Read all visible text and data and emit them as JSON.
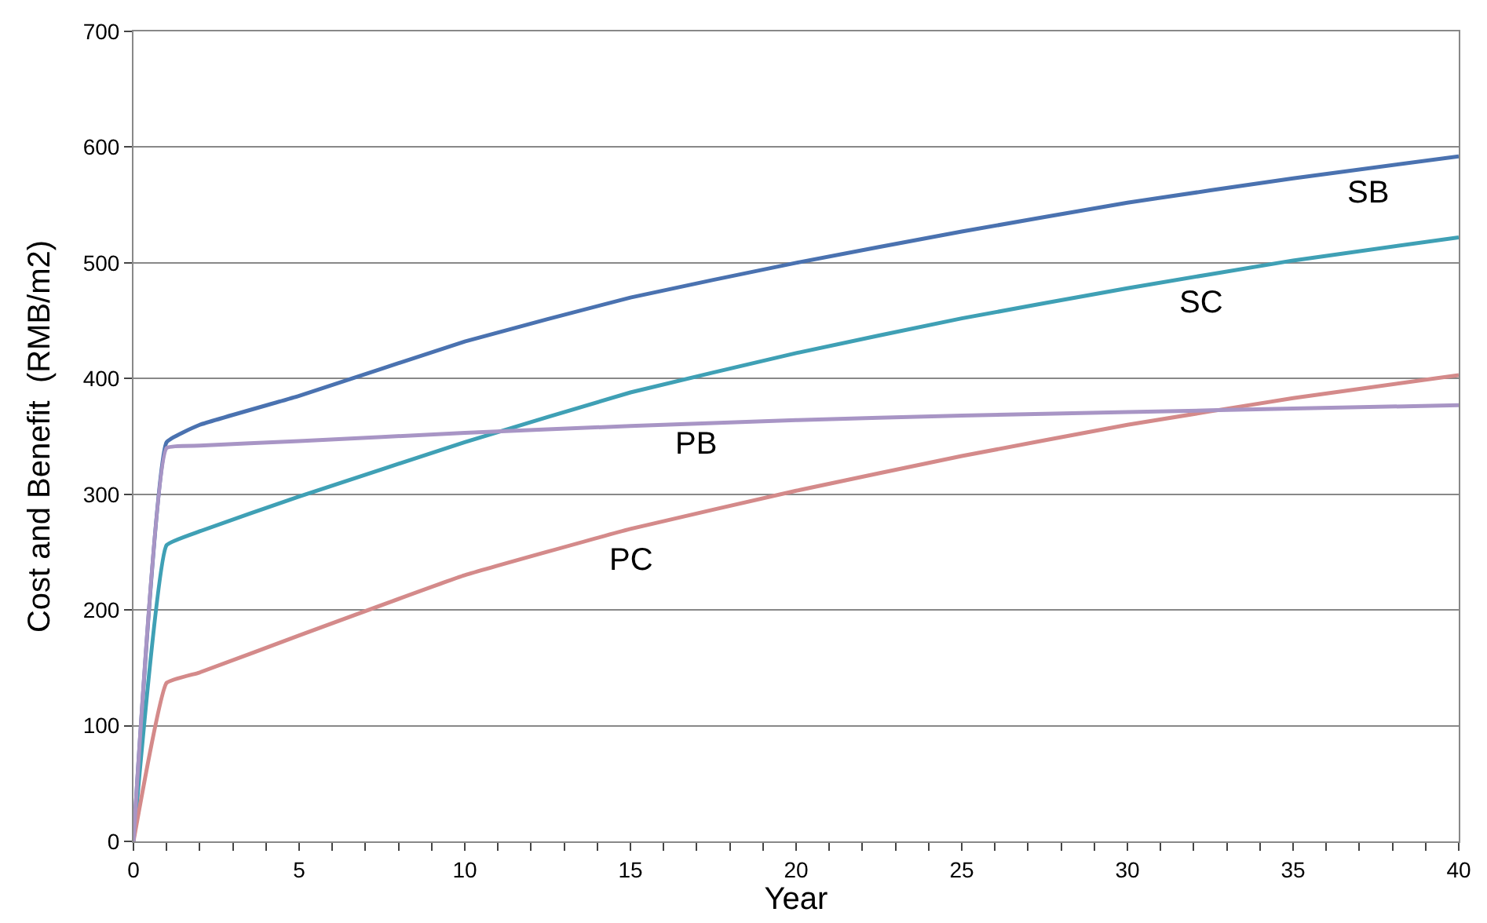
{
  "chart_data": {
    "type": "line",
    "xlabel": "Year",
    "ylabel": "Cost and Benefit  (RMB/m2)",
    "x": [
      0,
      1,
      2,
      5,
      10,
      15,
      20,
      25,
      30,
      35,
      40
    ],
    "series": [
      {
        "name": "SB",
        "color": "#4a72b0",
        "values": [
          0,
          345,
          360,
          385,
          432,
          470,
          500,
          527,
          552,
          573,
          592
        ]
      },
      {
        "name": "SC",
        "color": "#3fa0b5",
        "values": [
          0,
          256,
          268,
          298,
          345,
          388,
          422,
          452,
          478,
          502,
          522
        ]
      },
      {
        "name": "PC",
        "color": "#d48a8a",
        "values": [
          0,
          137,
          146,
          178,
          230,
          270,
          303,
          333,
          360,
          383,
          403
        ]
      },
      {
        "name": "PB",
        "color": "#a895c5",
        "values": [
          0,
          340,
          342,
          346,
          353,
          359,
          364,
          368,
          371,
          374,
          377
        ]
      }
    ],
    "xlim": [
      0,
      40
    ],
    "ylim": [
      0,
      700
    ],
    "xticks": [
      0,
      {
        "value": 1,
        "label": null
      },
      {
        "value": 2,
        "label": null
      },
      {
        "value": 3,
        "label": null
      },
      {
        "value": 4,
        "label": null
      },
      5,
      {
        "value": 6,
        "label": null
      },
      {
        "value": 7,
        "label": null
      },
      {
        "value": 8,
        "label": null
      },
      {
        "value": 9,
        "label": null
      },
      10,
      {
        "value": 11,
        "label": null
      },
      {
        "value": 12,
        "label": null
      },
      {
        "value": 13,
        "label": null
      },
      {
        "value": 14,
        "label": null
      },
      15,
      {
        "value": 16,
        "label": null
      },
      {
        "value": 17,
        "label": null
      },
      {
        "value": 18,
        "label": null
      },
      {
        "value": 19,
        "label": null
      },
      20,
      {
        "value": 21,
        "label": null
      },
      {
        "value": 22,
        "label": null
      },
      {
        "value": 23,
        "label": null
      },
      {
        "value": 24,
        "label": null
      },
      25,
      {
        "value": 26,
        "label": null
      },
      {
        "value": 27,
        "label": null
      },
      {
        "value": 28,
        "label": null
      },
      {
        "value": 29,
        "label": null
      },
      30,
      {
        "value": 31,
        "label": null
      },
      {
        "value": 32,
        "label": null
      },
      {
        "value": 33,
        "label": null
      },
      {
        "value": 34,
        "label": null
      },
      35,
      {
        "value": 36,
        "label": null
      },
      {
        "value": 37,
        "label": null
      },
      {
        "value": 38,
        "label": null
      },
      {
        "value": 39,
        "label": null
      },
      40
    ],
    "yticks": [
      0,
      100,
      200,
      300,
      400,
      500,
      600,
      700
    ],
    "grid": "y",
    "legend": false,
    "marker": "none",
    "line_style": "solid"
  }
}
